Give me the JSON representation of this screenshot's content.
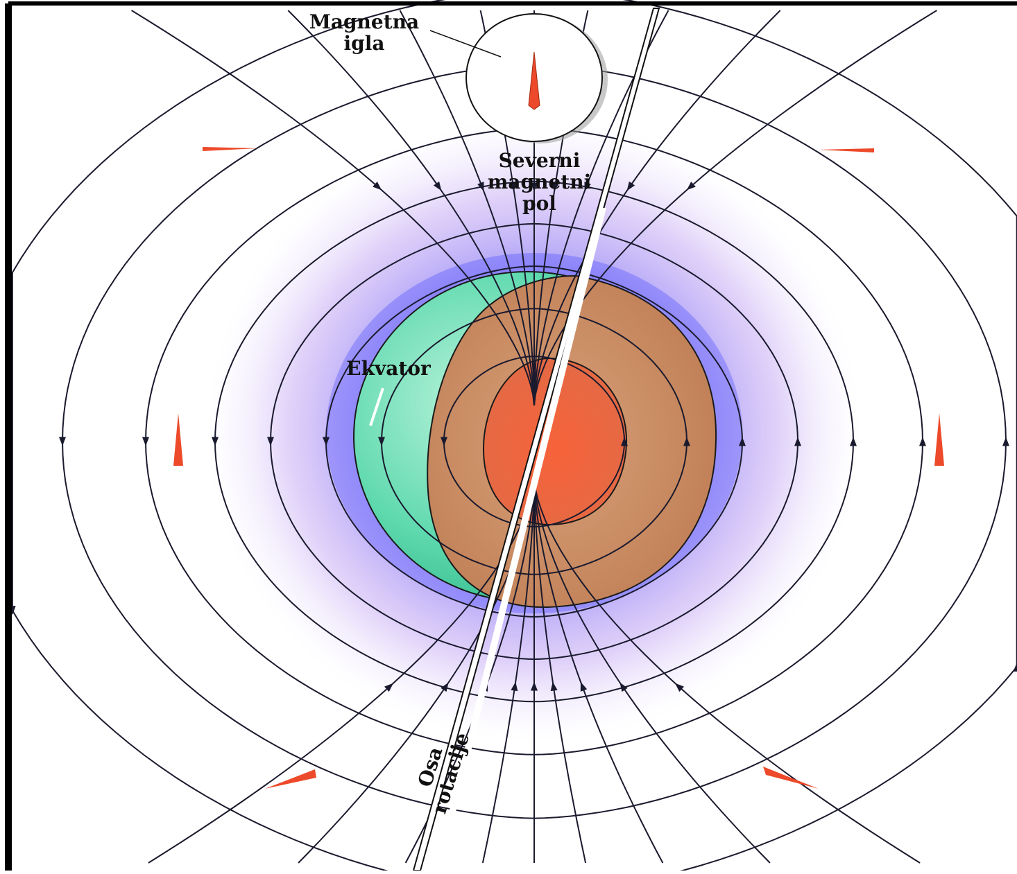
{
  "labels": {
    "needle_line1": "Magnetna",
    "needle_line2": "igla",
    "pole_line1": "Severni",
    "pole_line2": "magnetni",
    "pole_line3": "pol",
    "equator": "Ekvator",
    "axis_line1": "Osa",
    "axis_line2": "rotacije"
  },
  "colors": {
    "field_line": "#1a1a2e",
    "field_halo": "#8a6df0",
    "earth_crust_green": "#4fd7a8",
    "earth_mantle": "#c98a5c",
    "earth_core": "#ec5a32",
    "arrow_red": "#ec4a2a",
    "axis_white": "#ffffff",
    "frame": "#000000"
  }
}
